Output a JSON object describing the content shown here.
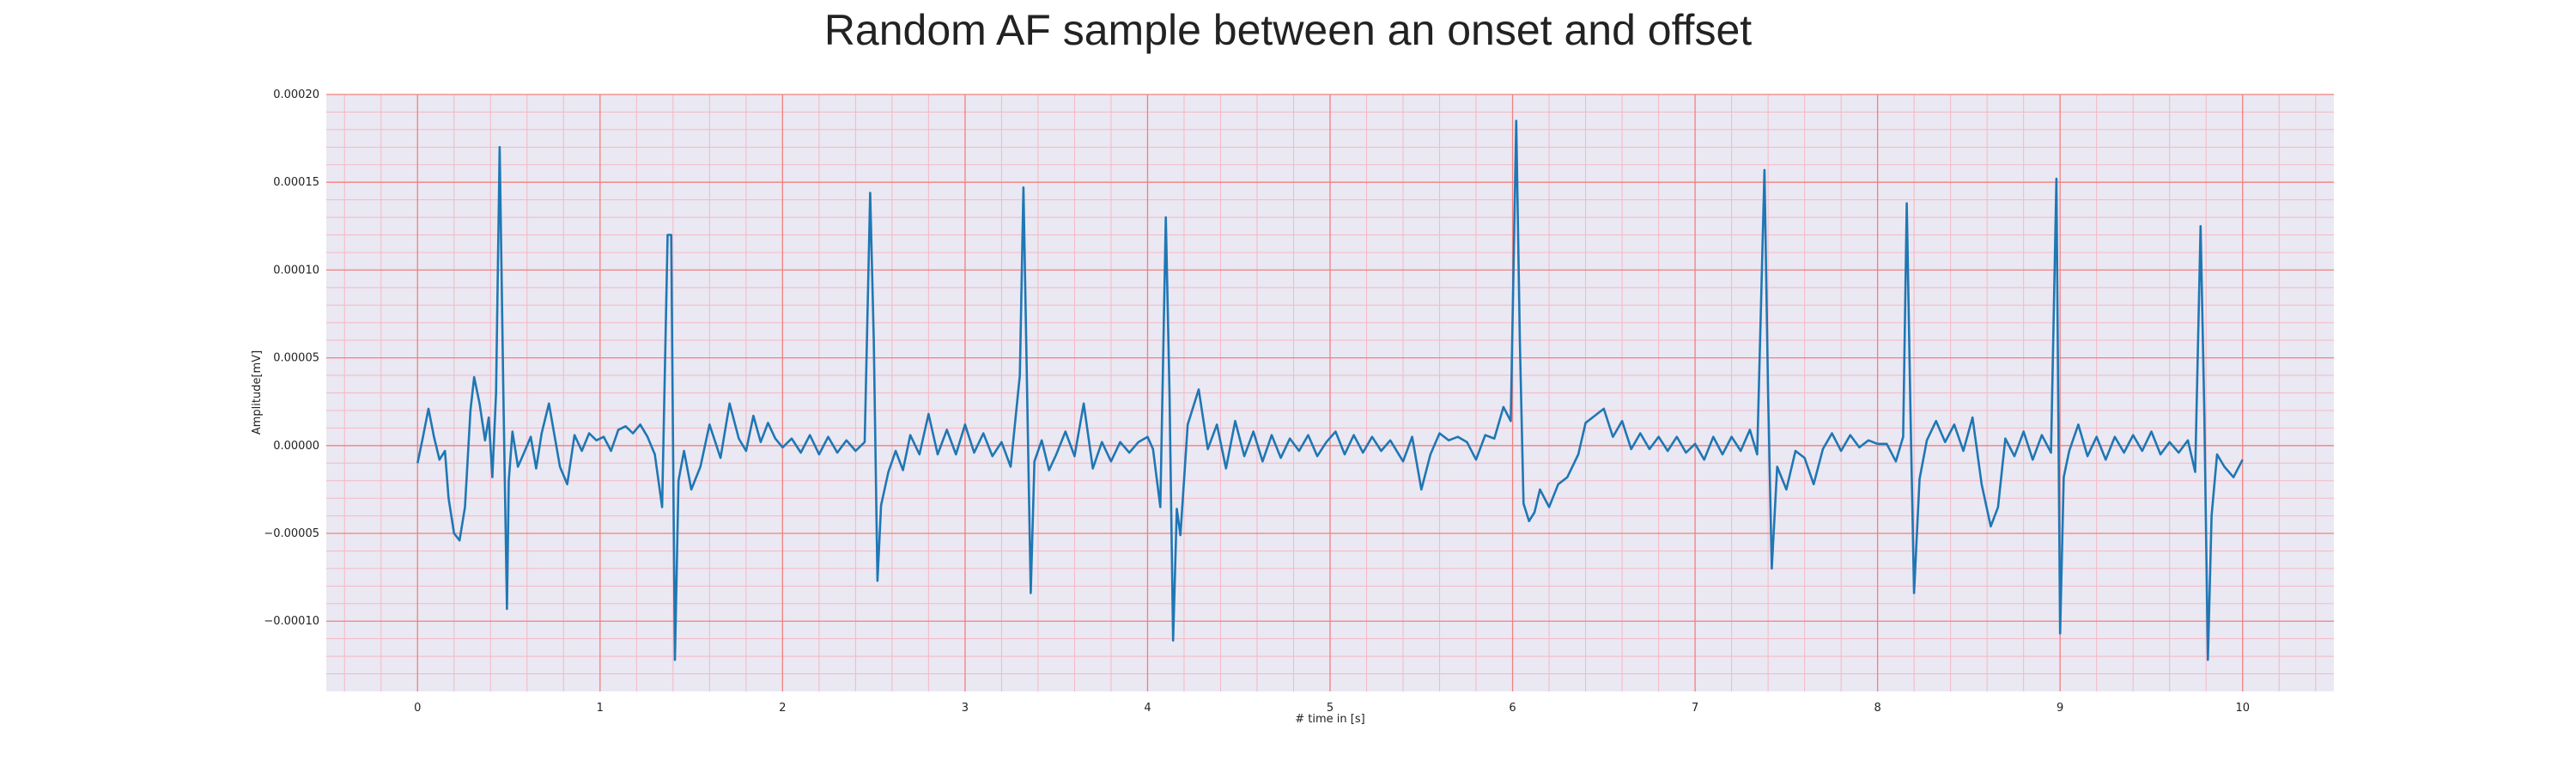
{
  "chart_data": {
    "type": "line",
    "title": "Random AF sample between an onset and offset",
    "xlabel": "# time in [s]",
    "ylabel": "Amplitude[mV]",
    "xlim": [
      -0.5,
      10.5
    ],
    "ylim": [
      -0.00014,
      0.0002
    ],
    "x_ticks": [
      0,
      1,
      2,
      3,
      4,
      5,
      6,
      7,
      8,
      9,
      10
    ],
    "x_tick_labels": [
      "0",
      "1",
      "2",
      "3",
      "4",
      "5",
      "6",
      "7",
      "8",
      "9",
      "10"
    ],
    "y_ticks": [
      -0.0001,
      -5e-05,
      0,
      5e-05,
      0.0001,
      0.00015,
      0.0002
    ],
    "y_tick_labels": [
      "−0.00010",
      "−0.00005",
      "0.00000",
      "0.00005",
      "0.00010",
      "0.00015",
      "0.00020"
    ],
    "grid": true,
    "minor_grid": true,
    "colors": {
      "line": "#1f77b4",
      "background": "#eae8f2",
      "major_grid": "#f08080",
      "minor_grid": "#f4b8c4"
    },
    "series": [
      {
        "points": [
          [
            0.0,
            -1e-05
          ],
          [
            0.03,
            5e-06
          ],
          [
            0.06,
            2.1e-05
          ],
          [
            0.09,
            5e-06
          ],
          [
            0.12,
            -8e-06
          ],
          [
            0.15,
            -3e-06
          ],
          [
            0.17,
            -3e-05
          ],
          [
            0.2,
            -5e-05
          ],
          [
            0.23,
            -5.4e-05
          ],
          [
            0.26,
            -3.5e-05
          ],
          [
            0.29,
            2e-05
          ],
          [
            0.31,
            3.9e-05
          ],
          [
            0.34,
            2.4e-05
          ],
          [
            0.37,
            3e-06
          ],
          [
            0.39,
            1.6e-05
          ],
          [
            0.41,
            -1.8e-05
          ],
          [
            0.43,
            3e-05
          ],
          [
            0.45,
            0.00017
          ],
          [
            0.47,
            3e-05
          ],
          [
            0.49,
            -9.3e-05
          ],
          [
            0.5,
            -2e-05
          ],
          [
            0.52,
            8e-06
          ],
          [
            0.55,
            -1.2e-05
          ],
          [
            0.58,
            -5e-06
          ],
          [
            0.62,
            5e-06
          ],
          [
            0.65,
            -1.3e-05
          ],
          [
            0.68,
            7e-06
          ],
          [
            0.72,
            2.4e-05
          ],
          [
            0.75,
            6e-06
          ],
          [
            0.78,
            -1.2e-05
          ],
          [
            0.82,
            -2.2e-05
          ],
          [
            0.86,
            6e-06
          ],
          [
            0.9,
            -3e-06
          ],
          [
            0.94,
            7e-06
          ],
          [
            0.98,
            3e-06
          ],
          [
            1.02,
            5e-06
          ],
          [
            1.06,
            -3e-06
          ],
          [
            1.1,
            9e-06
          ],
          [
            1.14,
            1.1e-05
          ],
          [
            1.18,
            7e-06
          ],
          [
            1.22,
            1.2e-05
          ],
          [
            1.26,
            5e-06
          ],
          [
            1.3,
            -5e-06
          ],
          [
            1.34,
            -3.5e-05
          ],
          [
            1.37,
            0.00012
          ],
          [
            1.39,
            0.00012
          ],
          [
            1.41,
            -0.000122
          ],
          [
            1.43,
            -2e-05
          ],
          [
            1.46,
            -3e-06
          ],
          [
            1.5,
            -2.5e-05
          ],
          [
            1.55,
            -1.2e-05
          ],
          [
            1.6,
            1.2e-05
          ],
          [
            1.66,
            -7e-06
          ],
          [
            1.71,
            2.4e-05
          ],
          [
            1.76,
            4e-06
          ],
          [
            1.8,
            -3e-06
          ],
          [
            1.84,
            1.7e-05
          ],
          [
            1.88,
            2e-06
          ],
          [
            1.92,
            1.3e-05
          ],
          [
            1.96,
            4e-06
          ],
          [
            2.0,
            -1e-06
          ],
          [
            2.05,
            4e-06
          ],
          [
            2.1,
            -4e-06
          ],
          [
            2.15,
            6e-06
          ],
          [
            2.2,
            -5e-06
          ],
          [
            2.25,
            5e-06
          ],
          [
            2.3,
            -4e-06
          ],
          [
            2.35,
            3e-06
          ],
          [
            2.4,
            -3e-06
          ],
          [
            2.45,
            2e-06
          ],
          [
            2.48,
            0.000144
          ],
          [
            2.5,
            6e-05
          ],
          [
            2.52,
            -7.7e-05
          ],
          [
            2.54,
            -3.4e-05
          ],
          [
            2.58,
            -1.5e-05
          ],
          [
            2.62,
            -3e-06
          ],
          [
            2.66,
            -1.4e-05
          ],
          [
            2.7,
            6e-06
          ],
          [
            2.75,
            -5e-06
          ],
          [
            2.8,
            1.8e-05
          ],
          [
            2.85,
            -5e-06
          ],
          [
            2.9,
            9e-06
          ],
          [
            2.95,
            -5e-06
          ],
          [
            3.0,
            1.2e-05
          ],
          [
            3.05,
            -4e-06
          ],
          [
            3.1,
            7e-06
          ],
          [
            3.15,
            -6e-06
          ],
          [
            3.2,
            2e-06
          ],
          [
            3.25,
            -1.2e-05
          ],
          [
            3.3,
            4e-05
          ],
          [
            3.32,
            0.000147
          ],
          [
            3.34,
            3e-05
          ],
          [
            3.36,
            -8.4e-05
          ],
          [
            3.38,
            -9e-06
          ],
          [
            3.42,
            3e-06
          ],
          [
            3.46,
            -1.4e-05
          ],
          [
            3.5,
            -5e-06
          ],
          [
            3.55,
            8e-06
          ],
          [
            3.6,
            -6e-06
          ],
          [
            3.65,
            2.4e-05
          ],
          [
            3.7,
            -1.3e-05
          ],
          [
            3.75,
            2e-06
          ],
          [
            3.8,
            -9e-06
          ],
          [
            3.85,
            2e-06
          ],
          [
            3.9,
            -4e-06
          ],
          [
            3.95,
            2e-06
          ],
          [
            4.0,
            5e-06
          ],
          [
            4.03,
            -2e-06
          ],
          [
            4.07,
            -3.5e-05
          ],
          [
            4.1,
            0.00013
          ],
          [
            4.12,
            3e-05
          ],
          [
            4.14,
            -0.000111
          ],
          [
            4.16,
            -3.6e-05
          ],
          [
            4.18,
            -5.1e-05
          ],
          [
            4.22,
            1.2e-05
          ],
          [
            4.28,
            3.2e-05
          ],
          [
            4.33,
            -2e-06
          ],
          [
            4.38,
            1.2e-05
          ],
          [
            4.43,
            -1.3e-05
          ],
          [
            4.48,
            1.4e-05
          ],
          [
            4.53,
            -6e-06
          ],
          [
            4.58,
            8e-06
          ],
          [
            4.63,
            -9e-06
          ],
          [
            4.68,
            6e-06
          ],
          [
            4.73,
            -7e-06
          ],
          [
            4.78,
            4e-06
          ],
          [
            4.83,
            -3e-06
          ],
          [
            4.88,
            6e-06
          ],
          [
            4.93,
            -6e-06
          ],
          [
            4.98,
            2e-06
          ],
          [
            5.03,
            8e-06
          ],
          [
            5.08,
            -5e-06
          ],
          [
            5.13,
            6e-06
          ],
          [
            5.18,
            -4e-06
          ],
          [
            5.23,
            5e-06
          ],
          [
            5.28,
            -3e-06
          ],
          [
            5.33,
            3e-06
          ],
          [
            5.4,
            -9e-06
          ],
          [
            5.45,
            5e-06
          ],
          [
            5.5,
            -2.5e-05
          ],
          [
            5.55,
            -5e-06
          ],
          [
            5.6,
            7e-06
          ],
          [
            5.65,
            3e-06
          ],
          [
            5.7,
            5e-06
          ],
          [
            5.75,
            2e-06
          ],
          [
            5.8,
            -8e-06
          ],
          [
            5.85,
            6e-06
          ],
          [
            5.9,
            4e-06
          ],
          [
            5.95,
            2.2e-05
          ],
          [
            5.99,
            1.4e-05
          ],
          [
            6.02,
            0.000185
          ],
          [
            6.04,
            6e-05
          ],
          [
            6.06,
            -3.3e-05
          ],
          [
            6.09,
            -4.3e-05
          ],
          [
            6.12,
            -3.8e-05
          ],
          [
            6.15,
            -2.5e-05
          ],
          [
            6.2,
            -3.5e-05
          ],
          [
            6.25,
            -2.2e-05
          ],
          [
            6.3,
            -1.8e-05
          ],
          [
            6.36,
            -5e-06
          ],
          [
            6.4,
            1.3e-05
          ],
          [
            6.45,
            1.7e-05
          ],
          [
            6.5,
            2.1e-05
          ],
          [
            6.55,
            5e-06
          ],
          [
            6.6,
            1.4e-05
          ],
          [
            6.65,
            -2e-06
          ],
          [
            6.7,
            7e-06
          ],
          [
            6.75,
            -2e-06
          ],
          [
            6.8,
            5e-06
          ],
          [
            6.85,
            -3e-06
          ],
          [
            6.9,
            5e-06
          ],
          [
            6.95,
            -4e-06
          ],
          [
            7.0,
            1e-06
          ],
          [
            7.05,
            -8e-06
          ],
          [
            7.1,
            5e-06
          ],
          [
            7.15,
            -5e-06
          ],
          [
            7.2,
            5e-06
          ],
          [
            7.25,
            -3e-06
          ],
          [
            7.3,
            9e-06
          ],
          [
            7.34,
            -5e-06
          ],
          [
            7.38,
            0.000157
          ],
          [
            7.4,
            3e-05
          ],
          [
            7.42,
            -7e-05
          ],
          [
            7.45,
            -1.2e-05
          ],
          [
            7.5,
            -2.5e-05
          ],
          [
            7.55,
            -3e-06
          ],
          [
            7.6,
            -7e-06
          ],
          [
            7.65,
            -2.2e-05
          ],
          [
            7.7,
            -2e-06
          ],
          [
            7.75,
            7e-06
          ],
          [
            7.8,
            -3e-06
          ],
          [
            7.85,
            6e-06
          ],
          [
            7.9,
            -1e-06
          ],
          [
            7.95,
            3e-06
          ],
          [
            8.0,
            1e-06
          ],
          [
            8.05,
            1e-06
          ],
          [
            8.1,
            -9e-06
          ],
          [
            8.14,
            5e-06
          ],
          [
            8.16,
            0.000138
          ],
          [
            8.18,
            2e-05
          ],
          [
            8.2,
            -8.4e-05
          ],
          [
            8.23,
            -1.9e-05
          ],
          [
            8.27,
            3e-06
          ],
          [
            8.32,
            1.4e-05
          ],
          [
            8.37,
            2e-06
          ],
          [
            8.42,
            1.2e-05
          ],
          [
            8.47,
            -3e-06
          ],
          [
            8.52,
            1.6e-05
          ],
          [
            8.57,
            -2.2e-05
          ],
          [
            8.62,
            -4.6e-05
          ],
          [
            8.66,
            -3.5e-05
          ],
          [
            8.7,
            4e-06
          ],
          [
            8.75,
            -6e-06
          ],
          [
            8.8,
            8e-06
          ],
          [
            8.85,
            -8e-06
          ],
          [
            8.9,
            6e-06
          ],
          [
            8.95,
            -4e-06
          ],
          [
            8.98,
            0.000152
          ],
          [
            9.0,
            -0.000107
          ],
          [
            9.02,
            -1.8e-05
          ],
          [
            9.05,
            -3e-06
          ],
          [
            9.1,
            1.2e-05
          ],
          [
            9.15,
            -6e-06
          ],
          [
            9.2,
            5e-06
          ],
          [
            9.25,
            -8e-06
          ],
          [
            9.3,
            5e-06
          ],
          [
            9.35,
            -4e-06
          ],
          [
            9.4,
            6e-06
          ],
          [
            9.45,
            -3e-06
          ],
          [
            9.5,
            8e-06
          ],
          [
            9.55,
            -5e-06
          ],
          [
            9.6,
            2e-06
          ],
          [
            9.65,
            -4e-06
          ],
          [
            9.7,
            3e-06
          ],
          [
            9.74,
            -1.5e-05
          ],
          [
            9.77,
            0.000125
          ],
          [
            9.79,
            2e-05
          ],
          [
            9.81,
            -0.000122
          ],
          [
            9.83,
            -4e-05
          ],
          [
            9.86,
            -5e-06
          ],
          [
            9.9,
            -1.2e-05
          ],
          [
            9.95,
            -1.8e-05
          ],
          [
            10.0,
            -8e-06
          ]
        ]
      }
    ]
  }
}
